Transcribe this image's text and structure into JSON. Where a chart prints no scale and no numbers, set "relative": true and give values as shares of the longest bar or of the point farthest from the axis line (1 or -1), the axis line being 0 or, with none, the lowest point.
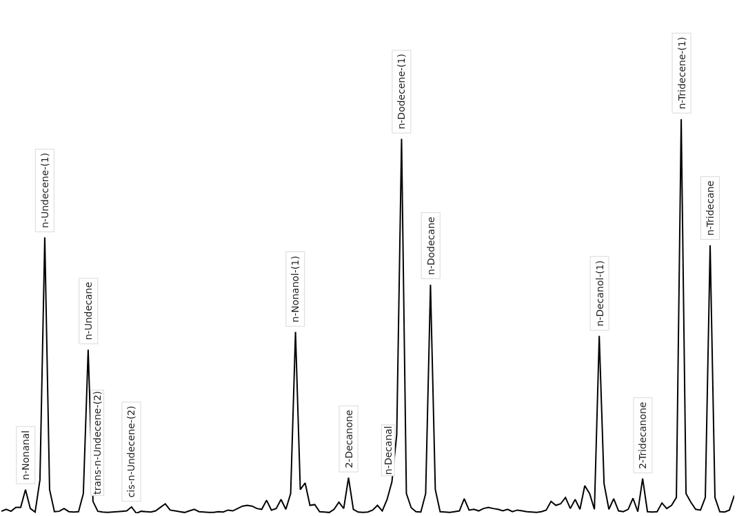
{
  "chart_data": {
    "type": "line",
    "relative": true,
    "marker": "none",
    "line_style": "solid",
    "categories": [
      null,
      null,
      null,
      null,
      null,
      null,
      null,
      null,
      null,
      null,
      null,
      null,
      null,
      null,
      null,
      null,
      null,
      null,
      null,
      null,
      null,
      null,
      null,
      null,
      null,
      null,
      null,
      null,
      null,
      null,
      null,
      null,
      null,
      null,
      null,
      null,
      null,
      null,
      null,
      null,
      null,
      null,
      null,
      null,
      null,
      null,
      null,
      null,
      null,
      null,
      null,
      null,
      null,
      null,
      null,
      null,
      null,
      null,
      null,
      null,
      null,
      null,
      null,
      null,
      null,
      null,
      null,
      null,
      null,
      null,
      null,
      null,
      null,
      null,
      null,
      null,
      null,
      null,
      null,
      null,
      null,
      null,
      null,
      null,
      null,
      null,
      null,
      null,
      null,
      null,
      null,
      null,
      null,
      null,
      null,
      null,
      null,
      null,
      null,
      null,
      null,
      null,
      null,
      null,
      null,
      null,
      null,
      null,
      null,
      null,
      null,
      null,
      null,
      null,
      null,
      null,
      null,
      null,
      null,
      null,
      null,
      null,
      null,
      null,
      null,
      null,
      null,
      null,
      null,
      null,
      null,
      null,
      null,
      null,
      null,
      null,
      null,
      null,
      null,
      null,
      null,
      null,
      null,
      null,
      null,
      null,
      null,
      null,
      null,
      null,
      null,
      null,
      null
    ],
    "series": [
      {
        "color": "#000000",
        "values": [
          0.005,
          0.01,
          0.005,
          0.015,
          0.015,
          0.06,
          0.012,
          0.003,
          0.085,
          0.7,
          0.06,
          0.004,
          0.005,
          0.012,
          0.004,
          0.003,
          0.004,
          0.05,
          0.415,
          0.03,
          0.005,
          0.003,
          0.002,
          0.003,
          0.004,
          0.005,
          0.006,
          0.016,
          0,
          0.005,
          0.004,
          0.003,
          0.006,
          0.015,
          0.024,
          0.008,
          0.006,
          0.004,
          0.002,
          0.006,
          0.01,
          0.004,
          0.003,
          0.002,
          0.002,
          0.004,
          0.003,
          0.008,
          0.006,
          0.012,
          0.018,
          0.02,
          0.018,
          0.012,
          0.01,
          0.033,
          0.008,
          0.012,
          0.035,
          0.01,
          0.05,
          0.46,
          0.06,
          0.077,
          0.02,
          0.022,
          0.004,
          0.003,
          0.002,
          0.01,
          0.028,
          0.012,
          0.09,
          0.01,
          0.003,
          0.002,
          0.003,
          0.008,
          0.02,
          0.006,
          0.035,
          0.08,
          0.2,
          0.95,
          0.05,
          0.014,
          0.004,
          0.003,
          0.05,
          0.58,
          0.06,
          0.004,
          0.003,
          0.002,
          0.004,
          0.006,
          0.037,
          0.008,
          0.01,
          0.006,
          0.012,
          0.015,
          0.012,
          0.01,
          0.006,
          0.01,
          0.004,
          0.008,
          0.006,
          0.004,
          0.003,
          0.002,
          0.004,
          0.008,
          0.03,
          0.02,
          0.024,
          0.04,
          0.012,
          0.035,
          0.01,
          0.07,
          0.05,
          0.01,
          0.45,
          0.075,
          0.01,
          0.037,
          0.006,
          0.004,
          0.01,
          0.038,
          0.004,
          0.088,
          0.004,
          0.003,
          0.004,
          0.026,
          0.012,
          0.02,
          0.04,
          1,
          0.05,
          0.028,
          0.01,
          0.008,
          0.04,
          0.68,
          0.04,
          0.004,
          0.003,
          0.008,
          0.045
        ]
      }
    ],
    "annotations": [
      {
        "text": "n-Nonanal",
        "y": 0.06
      },
      {
        "text": "n-Undecene-(1)",
        "y": 0.7
      },
      {
        "text": "n-Undecane",
        "y": 0.415
      },
      {
        "text": "trans-n-Undecene-(2)",
        "y": 0.03
      },
      {
        "text": "cis-n-Undecene-(2)",
        "y": 0.016
      },
      {
        "text": "n-Nonanol-(1)",
        "y": 0.46
      },
      {
        "text": "2-Decanone",
        "y": 0.09
      },
      {
        "text": "n-Decanal",
        "y": 0.08
      },
      {
        "text": "n-Dodecene-(1)",
        "y": 0.95
      },
      {
        "text": "n-Dodecane",
        "y": 0.58
      },
      {
        "text": "n-Decanol-(1)",
        "y": 0.45
      },
      {
        "text": "2-Tridecanone",
        "y": 0.088
      },
      {
        "text": "n-Tridecene-(1)",
        "y": 1
      },
      {
        "text": "n-Tridecane",
        "y": 0.68
      }
    ]
  }
}
